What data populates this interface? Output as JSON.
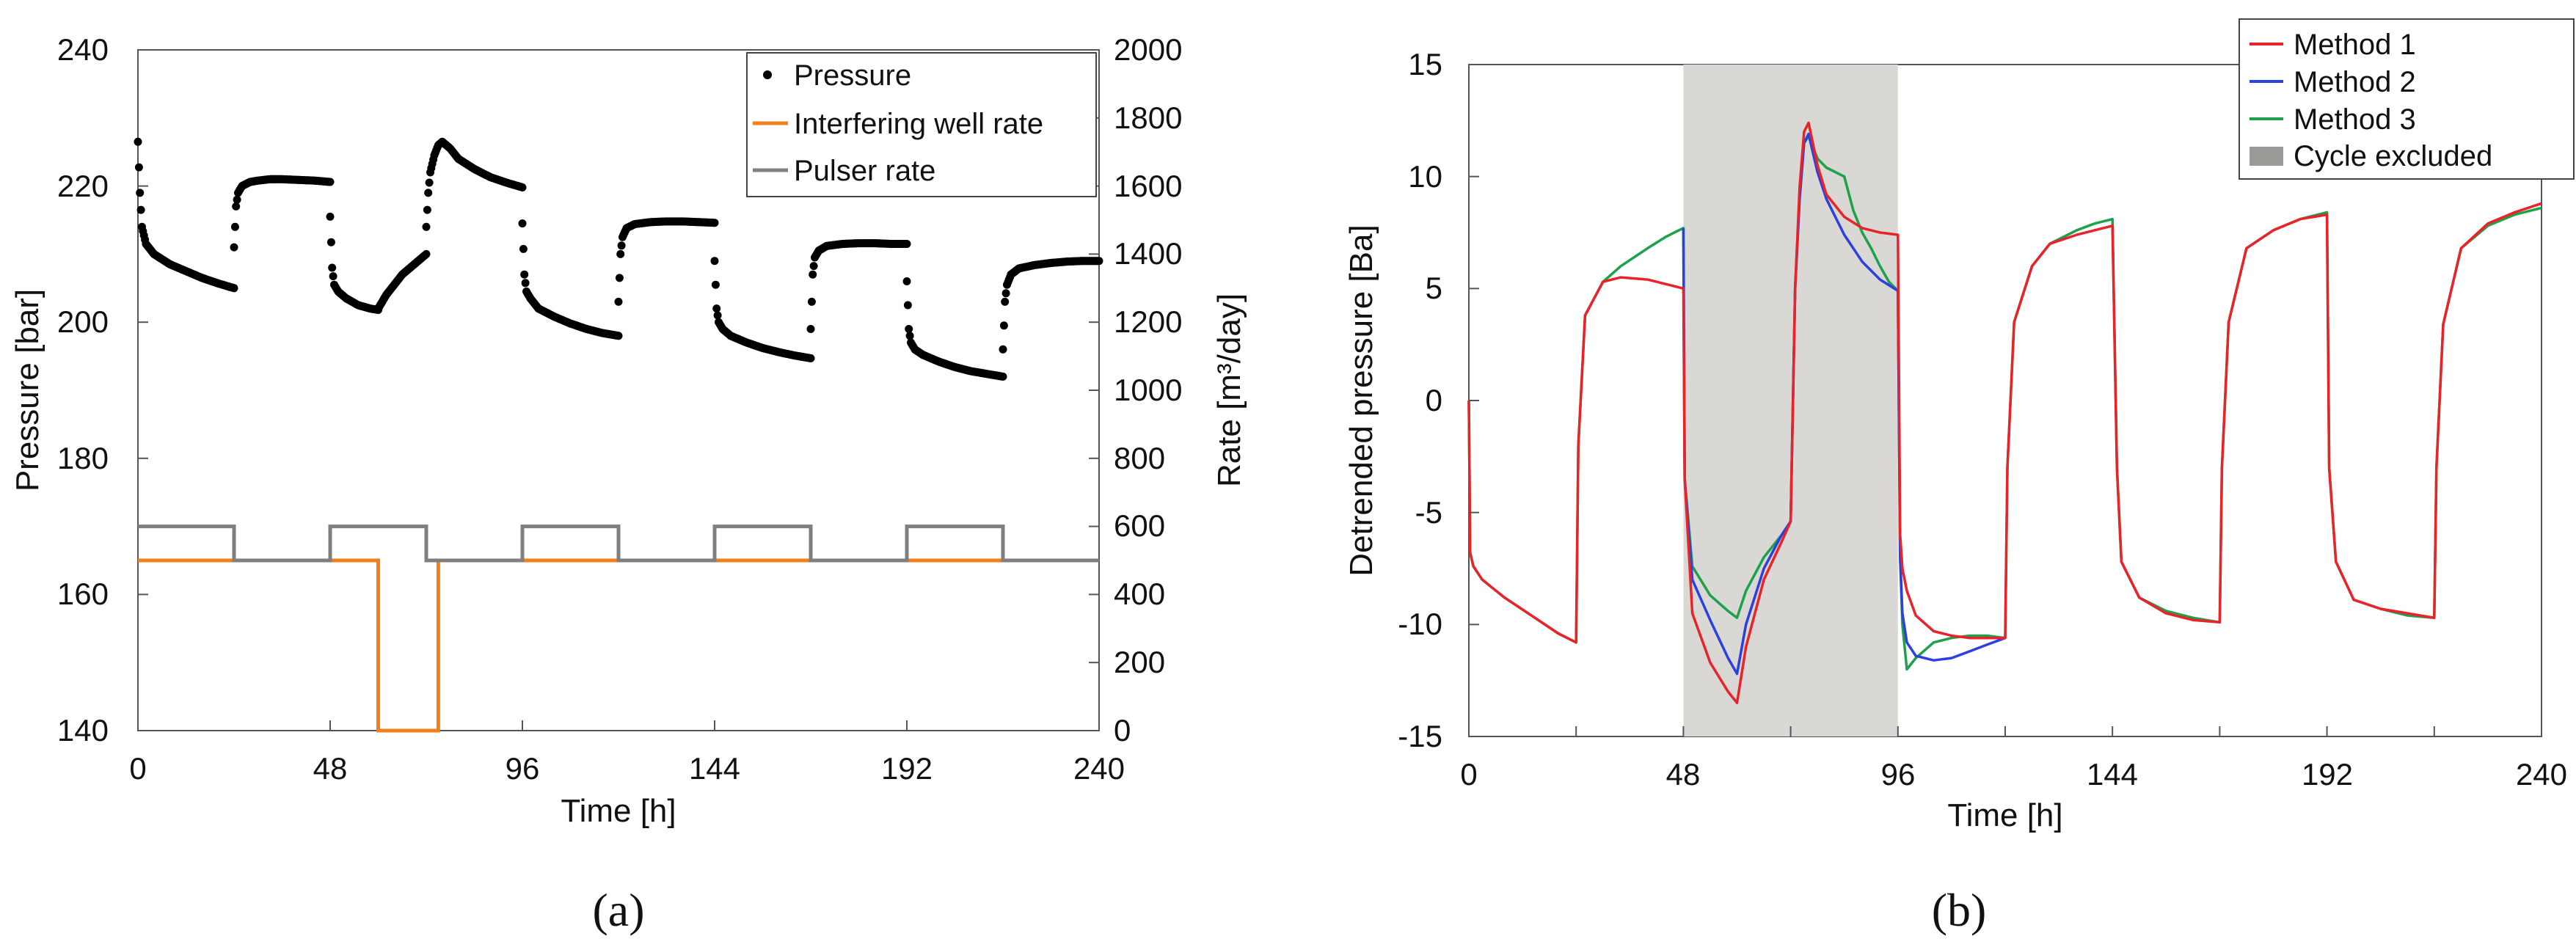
{
  "chart_data": [
    {
      "id": "a",
      "type": "scatter+line",
      "panel_label": "(a)",
      "xlabel": "Time [h]",
      "ylabel": "Pressure [bar]",
      "ylabel_right": "Rate [m³/day]",
      "xlim": [
        0,
        240
      ],
      "ylim": [
        140,
        240
      ],
      "ylim_right": [
        0,
        2000
      ],
      "x_ticks": [
        "0",
        "48",
        "96",
        "144",
        "192",
        "240"
      ],
      "y_ticks": [
        "140",
        "160",
        "180",
        "200",
        "220",
        "240"
      ],
      "y_ticks_right": [
        "0",
        "200",
        "400",
        "600",
        "800",
        "1000",
        "1200",
        "1400",
        "1600",
        "1800",
        "2000"
      ],
      "legend": [
        {
          "label": "Pressure",
          "marker": "dot",
          "color": "#000000"
        },
        {
          "label": "Interfering well rate",
          "marker": "line",
          "color": "#f07f1e"
        },
        {
          "label": "Pulser rate",
          "marker": "line",
          "color": "#7f7f7f"
        }
      ],
      "series": [
        {
          "name": "Pressure",
          "axis": "left",
          "color": "#000000",
          "segments": [
            {
              "x": [
                0,
                0.5,
                1,
                2,
                4,
                8,
                12,
                16,
                20,
                24
              ],
              "y": [
                226.5,
                219,
                214,
                211.5,
                210,
                208.5,
                207.5,
                206.5,
                205.7,
                205
              ]
            },
            {
              "x": [
                24,
                24.5,
                25,
                26,
                28,
                30,
                33,
                36,
                40,
                44,
                48
              ],
              "y": [
                211,
                217,
                219,
                220,
                220.6,
                220.8,
                221,
                221,
                220.9,
                220.8,
                220.6
              ]
            },
            {
              "x": [
                48,
                48.5,
                49,
                50,
                52,
                55,
                58,
                60
              ],
              "y": [
                215.5,
                208,
                205.5,
                204.5,
                203.5,
                202.5,
                202,
                201.8
              ]
            },
            {
              "x": [
                60,
                62,
                64,
                66,
                68,
                70,
                72
              ],
              "y": [
                202,
                204,
                205.5,
                207,
                208,
                209,
                210
              ]
            },
            {
              "x": [
                72,
                72.5,
                73,
                74,
                75,
                76,
                78,
                80,
                84,
                88,
                92,
                96
              ],
              "y": [
                214,
                219,
                222,
                224.5,
                226,
                226.5,
                225.5,
                224,
                222.5,
                221.3,
                220.5,
                219.8
              ]
            },
            {
              "x": [
                96,
                96.5,
                97,
                98,
                100,
                104,
                108,
                112,
                116,
                120
              ],
              "y": [
                214.5,
                207,
                204.5,
                203.5,
                202,
                200.8,
                199.8,
                199,
                198.4,
                198
              ]
            },
            {
              "x": [
                120,
                120.5,
                121,
                122,
                124,
                128,
                132,
                136,
                140,
                144
              ],
              "y": [
                203,
                210,
                212.5,
                213.8,
                214.4,
                214.7,
                214.8,
                214.8,
                214.7,
                214.6
              ]
            },
            {
              "x": [
                144,
                144.5,
                145,
                146,
                148,
                152,
                156,
                160,
                164,
                168
              ],
              "y": [
                209,
                202,
                200,
                199,
                198,
                197,
                196.2,
                195.6,
                195.1,
                194.7
              ]
            },
            {
              "x": [
                168,
                168.5,
                169,
                170,
                172,
                176,
                180,
                184,
                188,
                192
              ],
              "y": [
                199,
                207,
                209.5,
                210.5,
                211.2,
                211.5,
                211.6,
                211.6,
                211.5,
                211.5
              ]
            },
            {
              "x": [
                192,
                192.5,
                193,
                194,
                196,
                200,
                204,
                208,
                212,
                216
              ],
              "y": [
                206,
                199,
                197,
                196,
                195.2,
                194.2,
                193.4,
                192.8,
                192.4,
                192
              ]
            },
            {
              "x": [
                216,
                216.5,
                217,
                218,
                220,
                224,
                228,
                232,
                236,
                240
              ],
              "y": [
                196,
                203,
                205.5,
                207,
                207.9,
                208.4,
                208.7,
                208.9,
                209,
                209
              ]
            }
          ]
        },
        {
          "name": "Interfering well rate",
          "axis": "right",
          "color": "#f07f1e",
          "x": [
            0,
            60,
            60,
            75,
            75,
            240
          ],
          "y": [
            500,
            500,
            0,
            0,
            500,
            500
          ]
        },
        {
          "name": "Pulser rate",
          "axis": "right",
          "color": "#7f7f7f",
          "x": [
            0,
            24,
            24,
            48,
            48,
            72,
            72,
            96,
            96,
            120,
            120,
            144,
            144,
            168,
            168,
            192,
            192,
            216,
            216,
            240
          ],
          "y": [
            600,
            600,
            500,
            500,
            600,
            600,
            500,
            500,
            600,
            600,
            500,
            500,
            600,
            600,
            500,
            500,
            600,
            600,
            500,
            500
          ]
        }
      ]
    },
    {
      "id": "b",
      "type": "line",
      "panel_label": "(b)",
      "xlabel": "Time [h]",
      "ylabel": "Detrended pressure [Ba]",
      "xlim": [
        0,
        240
      ],
      "ylim": [
        -15,
        15
      ],
      "x_ticks": [
        "0",
        "48",
        "96",
        "144",
        "192",
        "240"
      ],
      "y_ticks": [
        "-15",
        "-10",
        "-5",
        "0",
        "5",
        "10",
        "15"
      ],
      "shaded_region": {
        "x": [
          48,
          96
        ],
        "label": "Cycle excluded",
        "color": "#d9d8d4"
      },
      "legend": [
        {
          "label": "Method 1",
          "color": "#e8232a"
        },
        {
          "label": "Method 2",
          "color": "#2c3fe0"
        },
        {
          "label": "Method 3",
          "color": "#1fa04a"
        },
        {
          "label": "Cycle excluded",
          "color": "#9a9a97"
        }
      ],
      "series": [
        {
          "name": "Method 3",
          "color": "#1fa04a",
          "x": [
            0,
            0.3,
            1,
            3,
            8,
            14,
            20,
            24,
            24,
            24.5,
            26,
            30,
            34,
            40,
            44,
            48,
            48,
            48.3,
            50,
            54,
            58,
            60,
            62,
            66,
            70,
            72,
            72,
            73,
            74,
            75,
            76,
            78,
            80,
            84,
            86,
            88,
            90,
            92,
            94,
            96,
            96,
            96.5,
            97,
            98,
            100,
            104,
            108,
            112,
            116,
            120,
            120,
            120.5,
            122,
            126,
            130,
            136,
            140,
            144,
            144,
            145,
            146,
            150,
            156,
            162,
            168,
            168,
            168.5,
            170,
            174,
            180,
            186,
            192,
            192,
            192.5,
            194,
            198,
            204,
            210,
            216,
            216,
            216.5,
            218,
            222,
            228,
            234,
            240
          ],
          "y": [
            0,
            -6.8,
            -7.4,
            -8,
            -8.8,
            -9.6,
            -10.4,
            -10.8,
            -10.8,
            -2,
            3.8,
            5.3,
            6,
            6.8,
            7.3,
            7.7,
            7.7,
            -3.5,
            -7.4,
            -8.7,
            -9.4,
            -9.7,
            -8.5,
            -7,
            -6,
            -5.4,
            -5.4,
            5,
            9,
            11.5,
            11.8,
            10.8,
            10.4,
            10,
            8.5,
            7.5,
            6.8,
            6,
            5.3,
            4.9,
            4.9,
            -7,
            -10,
            -12,
            -11.5,
            -10.8,
            -10.6,
            -10.5,
            -10.5,
            -10.6,
            -10.6,
            -3,
            3.5,
            6,
            7,
            7.6,
            7.9,
            8.1,
            8.1,
            -3,
            -7.2,
            -8.8,
            -9.4,
            -9.7,
            -9.9,
            -9.9,
            -3,
            3.5,
            6.8,
            7.6,
            8.1,
            8.4,
            8.4,
            -3,
            -7.2,
            -8.9,
            -9.3,
            -9.6,
            -9.7,
            -9.7,
            -3,
            3.4,
            6.8,
            7.8,
            8.3,
            8.6
          ]
        },
        {
          "name": "Method 2",
          "color": "#2c3fe0",
          "x": [
            48,
            48.3,
            50,
            54,
            58,
            60,
            62,
            66,
            70,
            72,
            72,
            73,
            74,
            75,
            76,
            78,
            80,
            84,
            88,
            92,
            96,
            96,
            96.5,
            97,
            98,
            100,
            104,
            108,
            112,
            116,
            120
          ],
          "y": [
            7.7,
            -3.5,
            -8,
            -9.8,
            -11.5,
            -12.2,
            -10,
            -7.5,
            -6,
            -5.4,
            -5.4,
            5,
            9,
            11.5,
            11.9,
            10.2,
            9,
            7.4,
            6.2,
            5.4,
            4.9,
            4.9,
            -7,
            -9.5,
            -10.8,
            -11.4,
            -11.6,
            -11.5,
            -11.2,
            -10.9,
            -10.6
          ]
        },
        {
          "name": "Method 1",
          "color": "#e8232a",
          "x": [
            0,
            0.3,
            1,
            3,
            8,
            14,
            20,
            24,
            24,
            24.5,
            26,
            30,
            34,
            40,
            44,
            48,
            48,
            48.3,
            50,
            54,
            58,
            60,
            62,
            66,
            70,
            72,
            72,
            73,
            74,
            75,
            76,
            78,
            80,
            84,
            88,
            92,
            96,
            96,
            96.5,
            97,
            98,
            100,
            104,
            108,
            112,
            116,
            120,
            120,
            120.5,
            122,
            126,
            130,
            136,
            140,
            144,
            144,
            145,
            146,
            150,
            156,
            162,
            168,
            168,
            168.5,
            170,
            174,
            180,
            186,
            192,
            192,
            192.5,
            194,
            198,
            204,
            210,
            216,
            216,
            216.5,
            218,
            222,
            228,
            234,
            240
          ],
          "y": [
            0,
            -6.8,
            -7.4,
            -8,
            -8.8,
            -9.6,
            -10.4,
            -10.8,
            -10.8,
            -2,
            3.8,
            5.3,
            5.5,
            5.4,
            5.2,
            5,
            5,
            -3.5,
            -9.5,
            -11.7,
            -13,
            -13.5,
            -11,
            -8,
            -6.3,
            -5.4,
            -5.4,
            5,
            9.5,
            12,
            12.4,
            10.5,
            9.2,
            8.2,
            7.7,
            7.5,
            7.4,
            7.4,
            -6,
            -7.5,
            -8.5,
            -9.6,
            -10.3,
            -10.5,
            -10.6,
            -10.6,
            -10.6,
            -10.6,
            -3,
            3.5,
            6,
            7,
            7.4,
            7.6,
            7.8,
            7.8,
            -3,
            -7.2,
            -8.8,
            -9.5,
            -9.8,
            -9.9,
            -9.9,
            -3,
            3.5,
            6.8,
            7.6,
            8.1,
            8.3,
            8.3,
            -3,
            -7.2,
            -8.9,
            -9.3,
            -9.5,
            -9.7,
            -9.7,
            -3,
            3.4,
            6.8,
            7.9,
            8.4,
            8.8
          ]
        }
      ]
    }
  ]
}
